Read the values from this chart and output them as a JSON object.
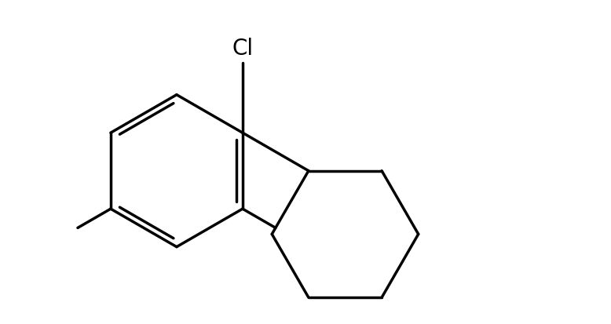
{
  "background_color": "#ffffff",
  "line_color": "#000000",
  "line_width": 2.5,
  "cl_label": "Cl",
  "font_size": 20,
  "font_family": "DejaVu Sans",
  "xlim": [
    0.0,
    10.0
  ],
  "ylim": [
    0.0,
    5.5
  ]
}
